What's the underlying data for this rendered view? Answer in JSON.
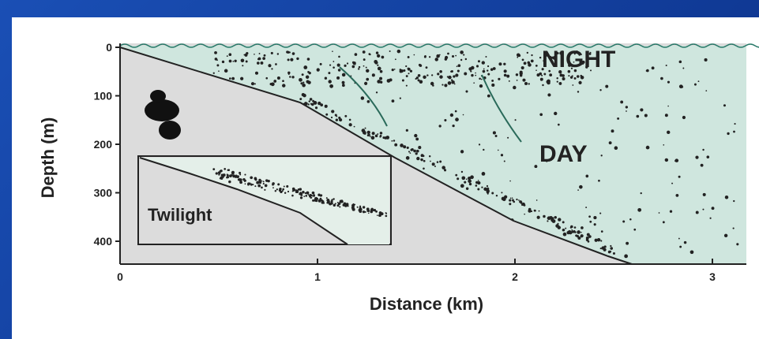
{
  "figure": {
    "y_axis": {
      "label": "Depth (m)",
      "ticks": [
        0,
        100,
        200,
        300,
        400
      ]
    },
    "x_axis": {
      "label": "Distance (km)",
      "ticks": [
        0,
        1,
        2,
        3
      ]
    },
    "labels": {
      "night": "NIGHT",
      "day": "DAY",
      "inset": "Twilight"
    }
  }
}
